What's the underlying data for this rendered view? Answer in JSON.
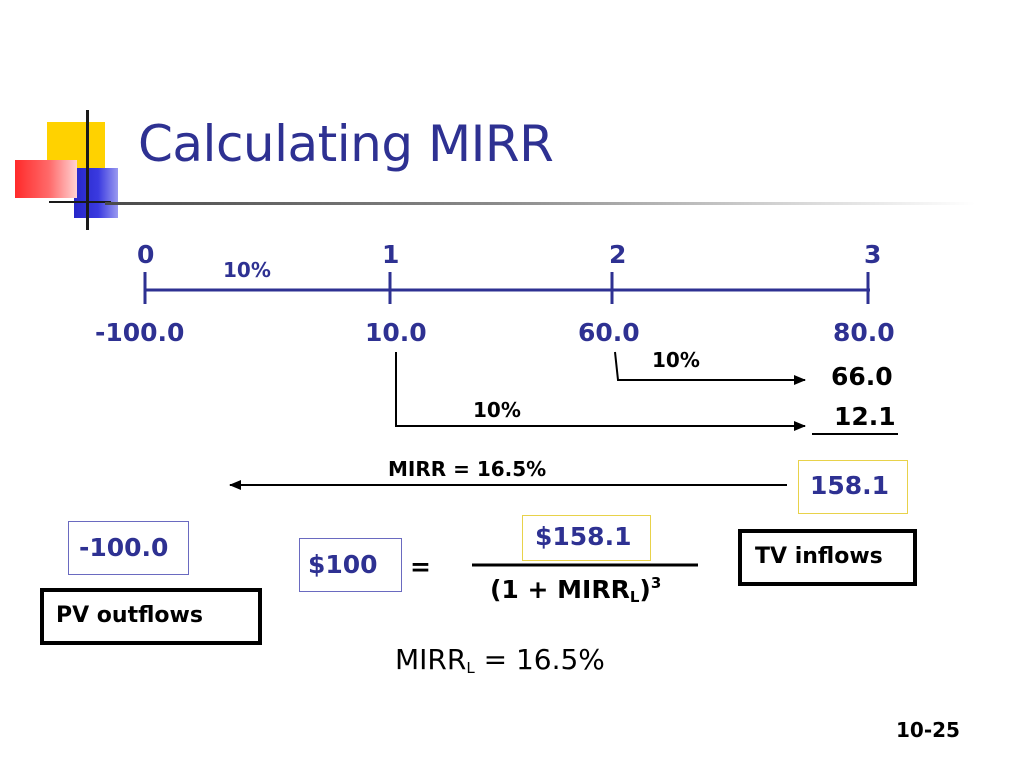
{
  "slide": {
    "title": "Calculating MIRR",
    "page_number": "10-25"
  },
  "timeline": {
    "periods": [
      "0",
      "1",
      "2",
      "3"
    ],
    "rate_label": "10%",
    "cash_flows": [
      "-100.0",
      "10.0",
      "60.0",
      "80.0"
    ]
  },
  "compounding": {
    "cf2_rate": "10%",
    "cf2_fv": "66.0",
    "cf1_rate": "10%",
    "cf1_fv": "12.1",
    "tv_total": "158.1"
  },
  "mirr_arrow_label": "MIRR = 16.5%",
  "pv_outflows": {
    "value": "-100.0",
    "label": "PV outflows"
  },
  "tv_inflows_label": "TV inflows",
  "equation": {
    "lhs": "$100",
    "equals": "=",
    "numerator": "$158.1",
    "denominator_prefix": "(1 + MIRR",
    "denominator_sub": "L",
    "denominator_close": ")",
    "denominator_exp": "3"
  },
  "result": {
    "prefix": "MIRR",
    "sub": "L",
    "suffix": " = 16.5%"
  },
  "colors": {
    "title": "#2e3192",
    "timeline": "#2e3192",
    "box_yellow_border": "#e8d24a",
    "box_blue_border": "#6a6ac0"
  }
}
